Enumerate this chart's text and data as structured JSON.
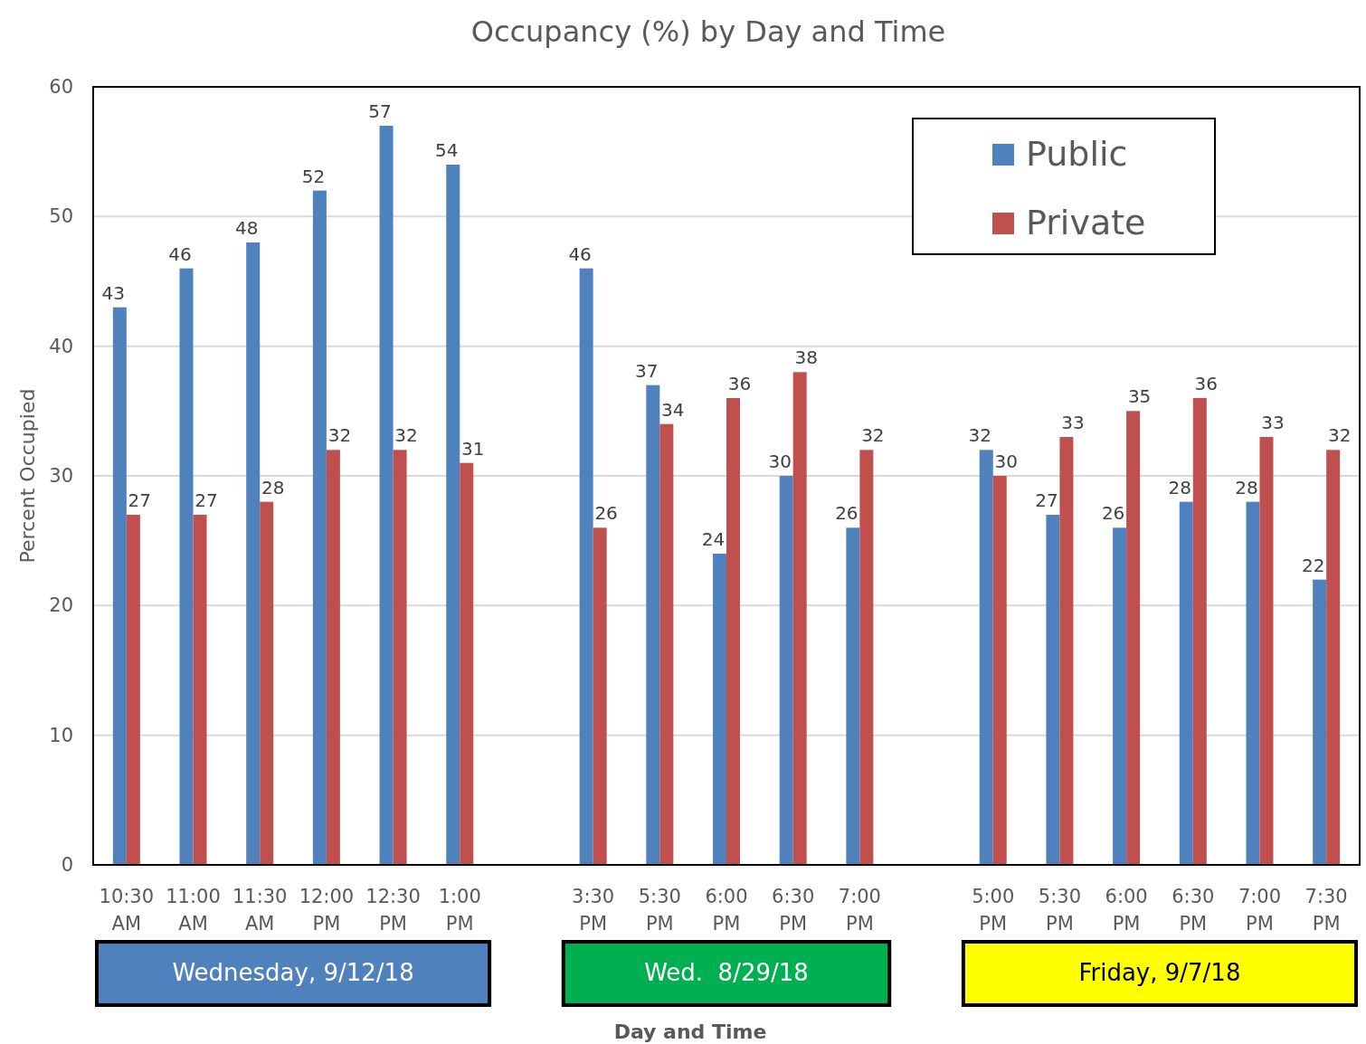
{
  "chart_data": {
    "type": "bar",
    "title": "Occupancy (%) by Day and Time",
    "xlabel": "Day and Time",
    "ylabel": "Percent Occupied",
    "categories": [
      "10:30 AM",
      "11:00 AM",
      "11:30 AM",
      "12:00 PM",
      "12:30 PM",
      "1:00 PM",
      null,
      "3:30 PM",
      "5:30 PM",
      "6:00 PM",
      "6:30 PM",
      "7:00 PM",
      null,
      "5:00 PM",
      "5:30 PM",
      "6:00 PM",
      "6:30 PM",
      "7:00 PM",
      "7:30 PM"
    ],
    "series": [
      {
        "name": "Public",
        "color": "#4f81bd",
        "values": [
          43,
          46,
          48,
          52,
          57,
          54,
          null,
          46,
          37,
          24,
          30,
          26,
          null,
          32,
          27,
          26,
          28,
          28,
          22
        ]
      },
      {
        "name": "Private",
        "color": "#c0504d",
        "values": [
          27,
          27,
          28,
          32,
          32,
          31,
          null,
          26,
          34,
          36,
          38,
          32,
          null,
          30,
          33,
          35,
          36,
          33,
          32
        ]
      }
    ],
    "ylim": [
      0,
      60
    ],
    "yticks": [
      0,
      10,
      20,
      30,
      40,
      50,
      60
    ],
    "grid": "y",
    "legend": "top right",
    "data_labels": true,
    "annotations": [
      "Wednesday, 9/12/18",
      "Wed.  8/29/18",
      "Friday, 9/7/18"
    ]
  }
}
